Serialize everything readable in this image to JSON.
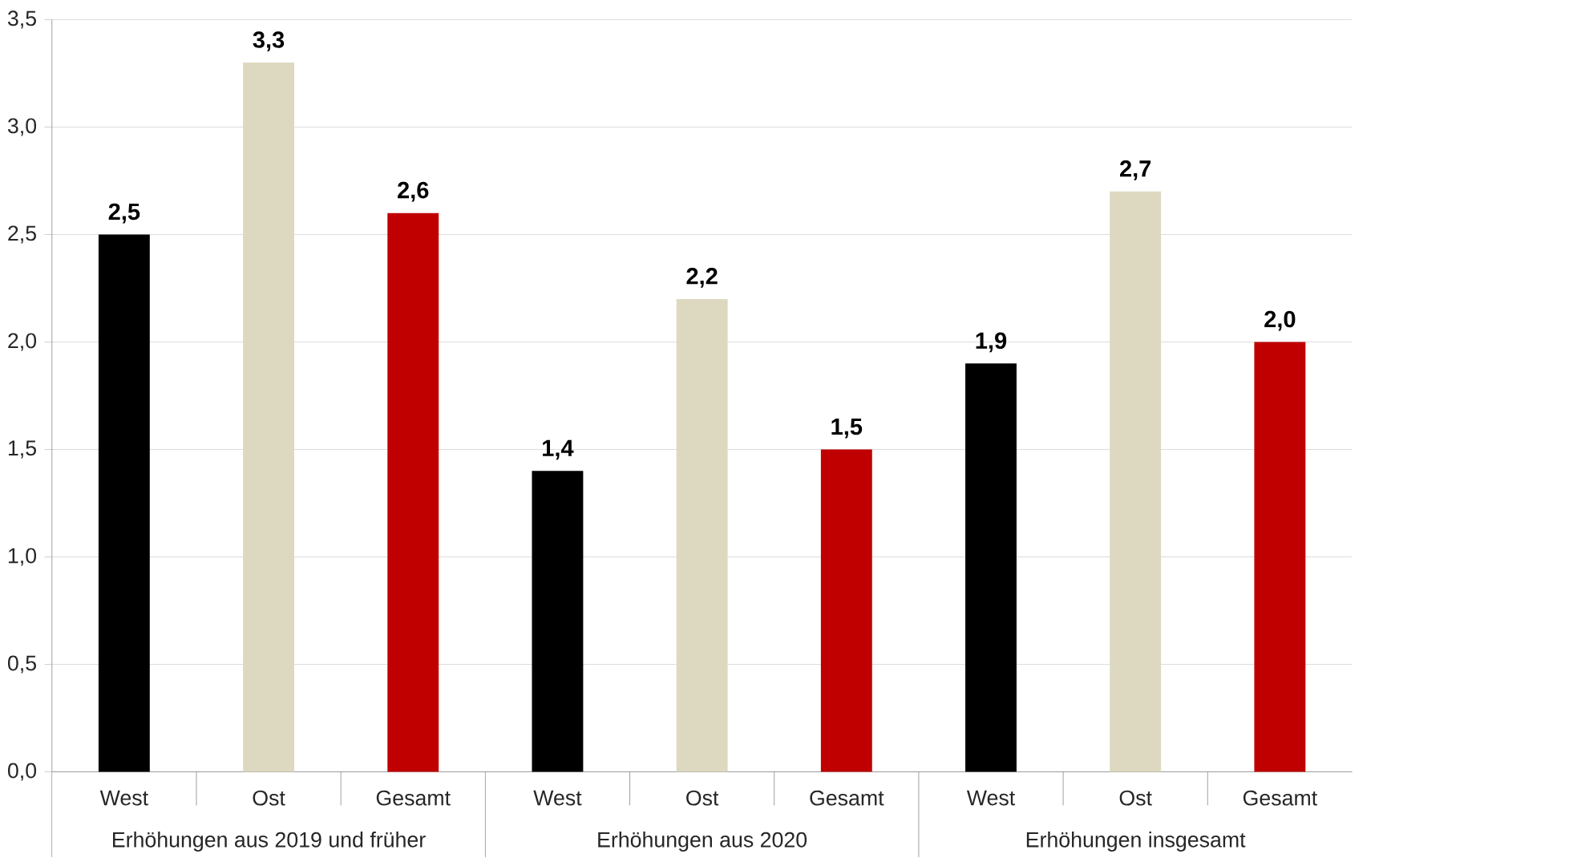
{
  "chart_data": {
    "type": "bar",
    "categories": [
      "Erhöhungen aus 2019 und früher",
      "Erhöhungen aus 2020",
      "Erhöhungen insgesamt"
    ],
    "series": [
      {
        "name": "West",
        "color": "#000000",
        "values": [
          2.5,
          1.4,
          1.9
        ],
        "value_labels": [
          "2,5",
          "1,4",
          "1,9"
        ]
      },
      {
        "name": "Ost",
        "color": "#ddd8c0",
        "values": [
          3.3,
          2.2,
          2.7
        ],
        "value_labels": [
          "3,3",
          "2,2",
          "2,7"
        ]
      },
      {
        "name": "Gesamt",
        "color": "#c00000",
        "values": [
          2.6,
          1.5,
          2.0
        ],
        "value_labels": [
          "2,6",
          "1,5",
          "2,0"
        ]
      }
    ],
    "ylim": [
      0,
      3.5
    ],
    "yticks": [
      {
        "value": 0,
        "label": "0,0"
      },
      {
        "value": 0.5,
        "label": "0,5"
      },
      {
        "value": 1,
        "label": "1,0"
      },
      {
        "value": 1.5,
        "label": "1,5"
      },
      {
        "value": 2,
        "label": "2,0"
      },
      {
        "value": 2.5,
        "label": "2,5"
      },
      {
        "value": 3,
        "label": "3,0"
      },
      {
        "value": 3.5,
        "label": "3,5"
      }
    ],
    "grid": "y"
  }
}
